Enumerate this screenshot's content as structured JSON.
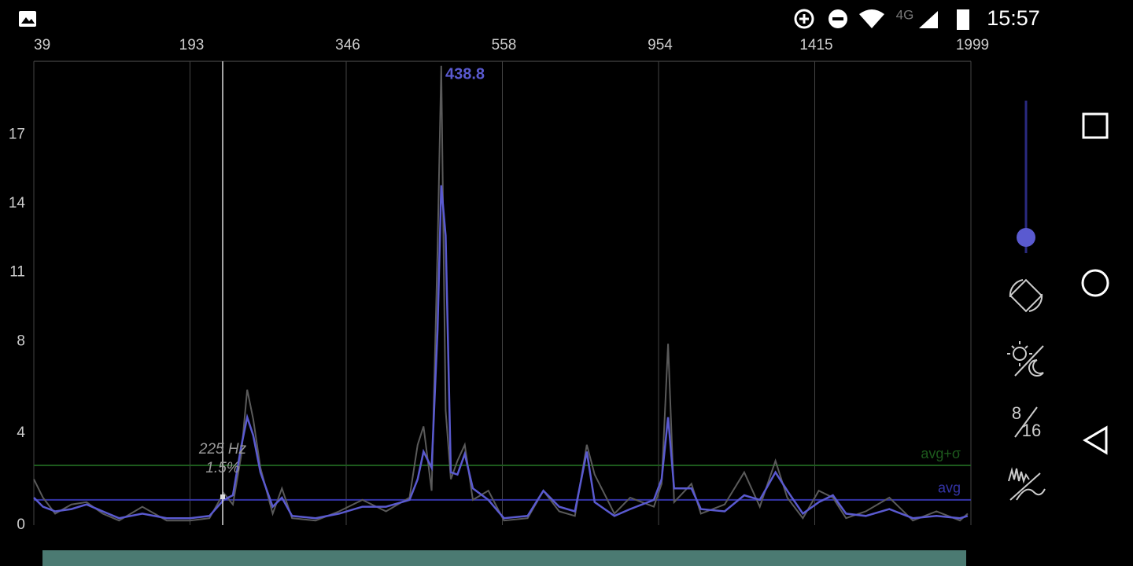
{
  "status_bar": {
    "network": "4G",
    "time": "15:57"
  },
  "chart_data": {
    "type": "line",
    "x": [
      39,
      48,
      60,
      76,
      91,
      107,
      123,
      146,
      170,
      193,
      212,
      226,
      235,
      243,
      249,
      255,
      262,
      274,
      283,
      293,
      316,
      339,
      368,
      400,
      432,
      443,
      451,
      462,
      470,
      475,
      481,
      488,
      497,
      507,
      518,
      539,
      562,
      622,
      662,
      702,
      742,
      772,
      792,
      842,
      882,
      942,
      963,
      982,
      1000,
      1051,
      1079,
      1149,
      1207,
      1253,
      1299,
      1334,
      1380,
      1430,
      1483,
      1532,
      1606,
      1694,
      1782,
      1870,
      1958,
      1987
    ],
    "series": [
      {
        "color": "#5a5ad0",
        "values": [
          1.2,
          0.8,
          0.6,
          0.7,
          0.9,
          0.6,
          0.3,
          0.5,
          0.3,
          0.3,
          0.4,
          1.1,
          1.3,
          3.4,
          4.7,
          3.9,
          2.3,
          0.8,
          1.2,
          0.4,
          0.3,
          0.5,
          0.8,
          0.8,
          1.1,
          2.0,
          3.2,
          2.5,
          8.5,
          14.8,
          12.6,
          2.3,
          2.2,
          3.1,
          1.6,
          1.1,
          0.3,
          0.4,
          1.5,
          0.8,
          0.6,
          3.2,
          1.0,
          0.4,
          0.7,
          1.1,
          2.0,
          4.7,
          1.6,
          1.6,
          0.7,
          0.6,
          1.3,
          1.1,
          2.3,
          1.5,
          0.5,
          1.0,
          1.3,
          0.5,
          0.4,
          0.7,
          0.3,
          0.4,
          0.3,
          0.4
        ]
      },
      {
        "color": "#5a5a5a",
        "values": [
          2.0,
          1.2,
          0.5,
          0.9,
          1.0,
          0.5,
          0.2,
          0.8,
          0.2,
          0.2,
          0.3,
          1.4,
          0.9,
          3.0,
          5.9,
          4.6,
          2.5,
          0.5,
          1.6,
          0.3,
          0.2,
          0.6,
          1.1,
          0.6,
          1.2,
          3.5,
          4.3,
          1.5,
          12,
          20,
          5,
          2.0,
          2.8,
          3.5,
          1.1,
          1.5,
          0.2,
          0.3,
          1.5,
          0.6,
          0.4,
          3.5,
          2.2,
          0.5,
          1.2,
          0.8,
          1.8,
          7.9,
          1.0,
          1.8,
          0.5,
          0.9,
          2.3,
          0.8,
          2.8,
          1.2,
          0.3,
          1.5,
          1.2,
          0.3,
          0.6,
          1.2,
          0.2,
          0.6,
          0.2,
          0.5
        ]
      }
    ],
    "xlim": [
      39,
      1999
    ],
    "xticks": [
      39,
      193,
      346,
      558,
      954,
      1415,
      1999
    ],
    "ylim": [
      0,
      20.2
    ],
    "yticks": [
      0,
      4,
      8,
      11,
      14,
      17
    ],
    "reference_lines": [
      {
        "label": "avg+σ",
        "value": 2.6,
        "color": "#1d5a1d"
      },
      {
        "label": "avg",
        "value": 1.1,
        "color": "#3434a8"
      }
    ],
    "cursor": {
      "x": 225,
      "label": "225 Hz",
      "level": "1.5%"
    },
    "peak_label": "438.8"
  },
  "sidebar": {
    "bits_top": "8",
    "bits_bottom": "16"
  }
}
